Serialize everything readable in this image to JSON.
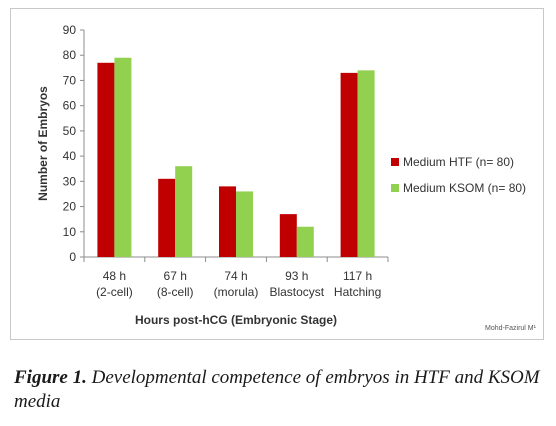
{
  "chart_data": {
    "type": "bar",
    "categories": [
      [
        "48 h",
        "(2-cell)"
      ],
      [
        "67 h",
        "(8-cell)"
      ],
      [
        "74 h",
        "(morula)"
      ],
      [
        "93 h",
        "Blastocyst"
      ],
      [
        "117 h",
        "Hatching"
      ]
    ],
    "series": [
      {
        "name": "Medium HTF (n= 80)",
        "color": "#c00000",
        "values": [
          77,
          31,
          28,
          17,
          73
        ]
      },
      {
        "name": "Medium KSOM (n= 80)",
        "color": "#92d050",
        "values": [
          79,
          36,
          26,
          12,
          74
        ]
      }
    ],
    "xlabel": "Hours post-hCG (Embryonic Stage)",
    "ylabel": "Number of Embryos",
    "ylim": [
      0,
      90
    ],
    "yticks": [
      0,
      10,
      20,
      30,
      40,
      50,
      60,
      70,
      80,
      90
    ],
    "grid": false,
    "legend": "right",
    "watermark": "Mohd-Fazirul M¹"
  },
  "caption": {
    "label": "Figure 1.",
    "text": " Developmental competence of embryos in HTF and KSOM media"
  }
}
